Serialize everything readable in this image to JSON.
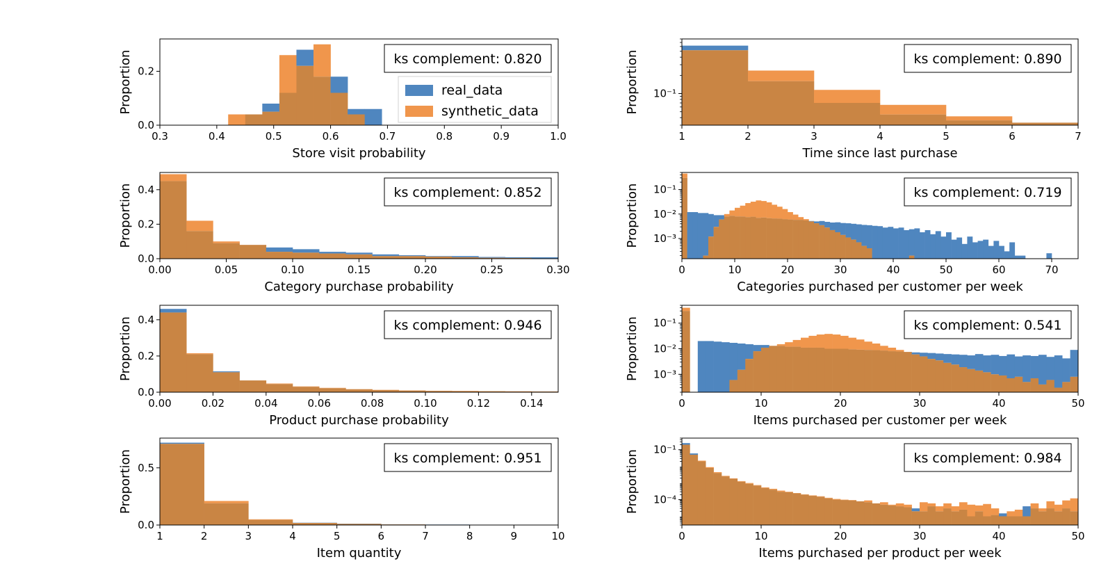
{
  "colors": {
    "real": "#4f86bf",
    "synthetic": "#f0964c",
    "overlap": "#c98544"
  },
  "legend": {
    "real_label": "real_data",
    "synthetic_label": "synthetic_data"
  },
  "chart_data": [
    {
      "type": "bar",
      "xlabel": "Store visit probability",
      "ylabel": "Proportion",
      "annotation": "ks complement: 0.820",
      "yscale": "linear",
      "xlim": [
        0.3,
        1.0
      ],
      "ylim": [
        0,
        0.32
      ],
      "xticks": [
        0.3,
        0.4,
        0.5,
        0.6,
        0.7,
        0.8,
        0.9,
        1.0
      ],
      "xtick_labels": [
        "0.3",
        "0.4",
        "0.5",
        "0.6",
        "0.7",
        "0.8",
        "0.9",
        "1.0"
      ],
      "yticks": [
        0.0,
        0.2
      ],
      "ytick_labels": [
        "0.0",
        "0.2"
      ],
      "bin_edges": [
        0.42,
        0.45,
        0.48,
        0.51,
        0.54,
        0.57,
        0.6,
        0.63,
        0.66,
        0.69
      ],
      "series": [
        {
          "name": "real_data",
          "values": [
            0.0,
            0.04,
            0.08,
            0.12,
            0.28,
            0.18,
            0.18,
            0.06,
            0.06
          ]
        },
        {
          "name": "synthetic_data",
          "values": [
            0.04,
            0.04,
            0.05,
            0.26,
            0.22,
            0.3,
            0.12,
            0.04,
            0.0
          ]
        }
      ]
    },
    {
      "type": "bar",
      "xlabel": "Time since last purchase",
      "ylabel": "Proportion",
      "annotation": "ks complement: 0.890",
      "yscale": "log",
      "xlim": [
        1,
        7
      ],
      "ylim": [
        0.03,
        0.8
      ],
      "xticks": [
        1,
        2,
        3,
        4,
        5,
        6,
        7
      ],
      "xtick_labels": [
        "1",
        "2",
        "3",
        "4",
        "5",
        "6",
        "7"
      ],
      "yticks": [
        0.1
      ],
      "ytick_labels": [
        "10⁻¹"
      ],
      "bin_edges": [
        1,
        2,
        3,
        4,
        5,
        6,
        7
      ],
      "series": [
        {
          "name": "real_data",
          "values": [
            0.62,
            0.16,
            0.07,
            0.045,
            0.036,
            0.033
          ]
        },
        {
          "name": "synthetic_data",
          "values": [
            0.52,
            0.24,
            0.115,
            0.065,
            0.042,
            0.033
          ]
        }
      ]
    },
    {
      "type": "bar",
      "xlabel": "Category purchase probability",
      "ylabel": "Proportion",
      "annotation": "ks complement: 0.852",
      "yscale": "linear",
      "xlim": [
        0.0,
        0.3
      ],
      "ylim": [
        0,
        0.5
      ],
      "xticks": [
        0.0,
        0.05,
        0.1,
        0.15,
        0.2,
        0.25,
        0.3
      ],
      "xtick_labels": [
        "0.00",
        "0.05",
        "0.10",
        "0.15",
        "0.20",
        "0.25",
        "0.30"
      ],
      "yticks": [
        0.0,
        0.2,
        0.4
      ],
      "ytick_labels": [
        "0.0",
        "0.2",
        "0.4"
      ],
      "bin_edges": [
        0.0,
        0.02,
        0.04,
        0.06,
        0.08,
        0.1,
        0.12,
        0.14,
        0.16,
        0.18,
        0.2,
        0.22,
        0.24,
        0.26,
        0.28,
        0.3
      ],
      "series": [
        {
          "name": "real_data",
          "values": [
            0.45,
            0.16,
            0.09,
            0.08,
            0.065,
            0.055,
            0.04,
            0.035,
            0.025,
            0.02,
            0.015,
            0.015,
            0.01,
            0.008,
            0.008
          ]
        },
        {
          "name": "synthetic_data",
          "values": [
            0.49,
            0.22,
            0.1,
            0.08,
            0.04,
            0.035,
            0.03,
            0.025,
            0.015,
            0.015,
            0.012,
            0.008,
            0.005,
            0.004,
            0.002
          ]
        }
      ]
    },
    {
      "type": "bar",
      "xlabel": "Categories purchased per customer per week",
      "ylabel": "Proportion",
      "annotation": "ks complement: 0.719",
      "yscale": "log",
      "xlim": [
        0,
        75
      ],
      "ylim": [
        0.00015,
        0.5
      ],
      "xticks": [
        0,
        10,
        20,
        30,
        40,
        50,
        60,
        70
      ],
      "xtick_labels": [
        "0",
        "10",
        "20",
        "30",
        "40",
        "50",
        "60",
        "70"
      ],
      "yticks": [
        0.1,
        0.01,
        0.001
      ],
      "ytick_labels": [
        "10⁻¹",
        "10⁻²",
        "10⁻³"
      ],
      "bin_edges": [
        0,
        1,
        2,
        3,
        4,
        5,
        6,
        7,
        8,
        9,
        10,
        11,
        12,
        13,
        14,
        15,
        16,
        17,
        18,
        19,
        20,
        21,
        22,
        23,
        24,
        25,
        26,
        27,
        28,
        29,
        30,
        31,
        32,
        33,
        34,
        35,
        36,
        37,
        38,
        39,
        40,
        41,
        42,
        43,
        44,
        45,
        46,
        47,
        48,
        49,
        50,
        51,
        52,
        53,
        54,
        55,
        56,
        57,
        58,
        59,
        60,
        61,
        62,
        63,
        64,
        65,
        66,
        67,
        68,
        69,
        70,
        71,
        72,
        73,
        74,
        75
      ],
      "series": [
        {
          "name": "real_data",
          "values": [
            0.3,
            0.012,
            0.012,
            0.011,
            0.011,
            0.01,
            0.009,
            0.009,
            0.008,
            0.0085,
            0.008,
            0.008,
            0.0075,
            0.0078,
            0.007,
            0.0072,
            0.0068,
            0.0066,
            0.0065,
            0.0062,
            0.006,
            0.0058,
            0.0058,
            0.0055,
            0.0052,
            0.005,
            0.0052,
            0.0048,
            0.0045,
            0.0046,
            0.0043,
            0.0042,
            0.004,
            0.0038,
            0.0036,
            0.0035,
            0.0033,
            0.0032,
            0.0028,
            0.003,
            0.0026,
            0.0028,
            0.0022,
            0.0024,
            0.0026,
            0.0018,
            0.0022,
            0.0015,
            0.002,
            0.0012,
            0.0018,
            0.0009,
            0.0011,
            0.0006,
            0.0012,
            0.0007,
            0.0008,
            0.0009,
            0.0005,
            0.0008,
            0.0005,
            0.0003,
            0.0007,
            0.0002,
            0.0002,
            0.0,
            0.0,
            0.0,
            0.0,
            0.00025,
            0.0,
            0.0,
            0.0,
            0.0,
            0.0
          ]
        },
        {
          "name": "synthetic_data",
          "values": [
            0.45,
            0.0,
            0.0,
            0.0,
            0.0002,
            0.0012,
            0.003,
            0.006,
            0.01,
            0.014,
            0.018,
            0.022,
            0.028,
            0.032,
            0.036,
            0.034,
            0.03,
            0.024,
            0.02,
            0.016,
            0.012,
            0.0095,
            0.0075,
            0.0062,
            0.005,
            0.0042,
            0.0035,
            0.0028,
            0.0022,
            0.0018,
            0.0014,
            0.0011,
            0.0009,
            0.0007,
            0.0005,
            0.0004,
            0.0,
            0.0,
            0.0,
            0.0,
            0.0,
            0.0,
            0.0,
            0.0002,
            0.0,
            0.0,
            0.0,
            0.0,
            0.0,
            0.0,
            0.0,
            0.0,
            0.0,
            0.0,
            0.0,
            0.0,
            0.0,
            0.0,
            0.0,
            0.0,
            0.0,
            0.0,
            0.0,
            0.0,
            0.0,
            0.0,
            0.0,
            0.0,
            0.0,
            0.0,
            0.0,
            0.0,
            0.0,
            0.0,
            0.0
          ]
        }
      ]
    },
    {
      "type": "bar",
      "xlabel": "Product purchase probability",
      "ylabel": "Proportion",
      "annotation": "ks complement: 0.946",
      "yscale": "linear",
      "xlim": [
        0.0,
        0.15
      ],
      "ylim": [
        0,
        0.48
      ],
      "xticks": [
        0.0,
        0.02,
        0.04,
        0.06,
        0.08,
        0.1,
        0.12,
        0.14
      ],
      "xtick_labels": [
        "0.00",
        "0.02",
        "0.04",
        "0.06",
        "0.08",
        "0.10",
        "0.12",
        "0.14"
      ],
      "yticks": [
        0.0,
        0.2,
        0.4
      ],
      "ytick_labels": [
        "0.0",
        "0.2",
        "0.4"
      ],
      "bin_edges": [
        0.0,
        0.01,
        0.02,
        0.03,
        0.04,
        0.05,
        0.06,
        0.07,
        0.08,
        0.09,
        0.1,
        0.11,
        0.12,
        0.13,
        0.14,
        0.15
      ],
      "series": [
        {
          "name": "real_data",
          "values": [
            0.46,
            0.21,
            0.115,
            0.065,
            0.045,
            0.03,
            0.022,
            0.016,
            0.012,
            0.009,
            0.007,
            0.006,
            0.005,
            0.004,
            0.004
          ]
        },
        {
          "name": "synthetic_data",
          "values": [
            0.44,
            0.215,
            0.11,
            0.065,
            0.048,
            0.032,
            0.024,
            0.017,
            0.013,
            0.01,
            0.008,
            0.007,
            0.006,
            0.005,
            0.004
          ]
        }
      ]
    },
    {
      "type": "bar",
      "xlabel": "Items purchased per customer per week",
      "ylabel": "Proportion",
      "annotation": "ks complement: 0.541",
      "yscale": "log",
      "xlim": [
        0,
        50
      ],
      "ylim": [
        0.0002,
        0.5
      ],
      "xticks": [
        0,
        10,
        20,
        30,
        40,
        50
      ],
      "xtick_labels": [
        "0",
        "10",
        "20",
        "30",
        "40",
        "50"
      ],
      "yticks": [
        0.1,
        0.01,
        0.001
      ],
      "ytick_labels": [
        "10⁻¹",
        "10⁻²",
        "10⁻³"
      ],
      "bin_edges": [
        0,
        1,
        2,
        3,
        4,
        5,
        6,
        7,
        8,
        9,
        10,
        11,
        12,
        13,
        14,
        15,
        16,
        17,
        18,
        19,
        20,
        21,
        22,
        23,
        24,
        25,
        26,
        27,
        28,
        29,
        30,
        31,
        32,
        33,
        34,
        35,
        36,
        37,
        38,
        39,
        40,
        41,
        42,
        43,
        44,
        45,
        46,
        47,
        48,
        49,
        50
      ],
      "series": [
        {
          "name": "real_data",
          "values": [
            0.3,
            0.0,
            0.02,
            0.02,
            0.019,
            0.018,
            0.017,
            0.016,
            0.015,
            0.014,
            0.014,
            0.013,
            0.013,
            0.012,
            0.012,
            0.011,
            0.011,
            0.011,
            0.01,
            0.01,
            0.01,
            0.0095,
            0.0092,
            0.009,
            0.0088,
            0.0085,
            0.008,
            0.0078,
            0.0075,
            0.0072,
            0.007,
            0.0068,
            0.0065,
            0.0062,
            0.006,
            0.0058,
            0.0055,
            0.0062,
            0.0055,
            0.0058,
            0.0052,
            0.006,
            0.005,
            0.0055,
            0.0052,
            0.0058,
            0.0048,
            0.0055,
            0.0042,
            0.009
          ]
        },
        {
          "name": "synthetic_data",
          "values": [
            0.4,
            0.0,
            0.0,
            0.0,
            0.0,
            0.0002,
            0.0006,
            0.0015,
            0.004,
            0.008,
            0.011,
            0.013,
            0.015,
            0.018,
            0.022,
            0.027,
            0.032,
            0.036,
            0.038,
            0.036,
            0.032,
            0.027,
            0.023,
            0.019,
            0.016,
            0.013,
            0.011,
            0.009,
            0.0075,
            0.006,
            0.005,
            0.004,
            0.0035,
            0.0028,
            0.0024,
            0.0019,
            0.0016,
            0.0014,
            0.0012,
            0.001,
            0.0009,
            0.0007,
            0.0008,
            0.0005,
            0.0007,
            0.0004,
            0.0006,
            0.0003,
            0.0005,
            0.0008
          ]
        }
      ]
    },
    {
      "type": "bar",
      "xlabel": "Item quantity",
      "ylabel": "Proportion",
      "annotation": "ks complement: 0.951",
      "yscale": "linear",
      "xlim": [
        1,
        10
      ],
      "ylim": [
        0,
        0.76
      ],
      "xticks": [
        1,
        2,
        3,
        4,
        5,
        6,
        7,
        8,
        9,
        10
      ],
      "xtick_labels": [
        "1",
        "2",
        "3",
        "4",
        "5",
        "6",
        "7",
        "8",
        "9",
        "10"
      ],
      "yticks": [
        0.0,
        0.5
      ],
      "ytick_labels": [
        "0.0",
        "0.5"
      ],
      "bin_edges": [
        1,
        2,
        3,
        4,
        5,
        6,
        7,
        8,
        9,
        10
      ],
      "series": [
        {
          "name": "real_data",
          "values": [
            0.72,
            0.19,
            0.045,
            0.02,
            0.012,
            0.006,
            0.004,
            0.003,
            0.002
          ]
        },
        {
          "name": "synthetic_data",
          "values": [
            0.71,
            0.21,
            0.05,
            0.018,
            0.01,
            0.005,
            0.003,
            0.002,
            0.002
          ]
        }
      ]
    },
    {
      "type": "bar",
      "xlabel": "Items purchased per product per week",
      "ylabel": "Proportion",
      "annotation": "ks complement: 0.984",
      "yscale": "log",
      "xlim": [
        0,
        50
      ],
      "ylim": [
        3e-06,
        0.5
      ],
      "xticks": [
        0,
        10,
        20,
        30,
        40,
        50
      ],
      "xtick_labels": [
        "0",
        "10",
        "20",
        "30",
        "40",
        "50"
      ],
      "yticks": [
        0.1,
        0.0001
      ],
      "ytick_labels": [
        "10⁻¹",
        "10⁻⁴"
      ],
      "bin_edges": [
        0,
        1,
        2,
        3,
        4,
        5,
        6,
        7,
        8,
        9,
        10,
        11,
        12,
        13,
        14,
        15,
        16,
        17,
        18,
        19,
        20,
        21,
        22,
        23,
        24,
        25,
        26,
        27,
        28,
        29,
        30,
        31,
        32,
        33,
        34,
        35,
        36,
        37,
        38,
        39,
        40,
        41,
        42,
        43,
        44,
        45,
        46,
        47,
        48,
        49,
        50
      ],
      "series": [
        {
          "name": "real_data",
          "values": [
            0.25,
            0.06,
            0.02,
            0.008,
            0.004,
            0.0025,
            0.0018,
            0.0012,
            0.0009,
            0.0007,
            0.0005,
            0.0004,
            0.0003,
            0.00028,
            0.00024,
            0.0002,
            0.00017,
            0.00015,
            0.00012,
            0.0001,
            9.5e-05,
            9e-05,
            8e-05,
            7e-05,
            6e-05,
            5e-05,
            4.5e-05,
            4e-05,
            3.5e-05,
            3e-05,
            2e-05,
            4e-05,
            2e-05,
            3e-05,
            2e-05,
            2.5e-05,
            1e-05,
            2e-05,
            1e-05,
            1.2e-05,
            1.5e-05,
            1e-05,
            1e-05,
            4e-05,
            3e-05,
            2e-05,
            3e-05,
            2e-05,
            3e-05,
            2e-05
          ]
        },
        {
          "name": "synthetic_data",
          "values": [
            0.2,
            0.05,
            0.022,
            0.009,
            0.0045,
            0.0027,
            0.0019,
            0.0013,
            0.001,
            0.00075,
            0.00055,
            0.00045,
            0.00035,
            0.0003,
            0.00025,
            0.00021,
            0.00018,
            0.00016,
            0.00013,
            0.00011,
            0.0001,
            9.5e-05,
            8e-05,
            9e-05,
            6e-05,
            7e-05,
            5e-05,
            6e-05,
            5e-05,
            2e-05,
            7e-05,
            6e-05,
            4e-05,
            6e-05,
            4e-05,
            7e-05,
            5e-05,
            4.5e-05,
            5.5e-05,
            3e-05,
            1e-05,
            2e-05,
            2.5e-05,
            1e-05,
            6e-05,
            3e-05,
            8e-05,
            5e-05,
            9e-05,
            0.00012
          ]
        }
      ]
    }
  ]
}
